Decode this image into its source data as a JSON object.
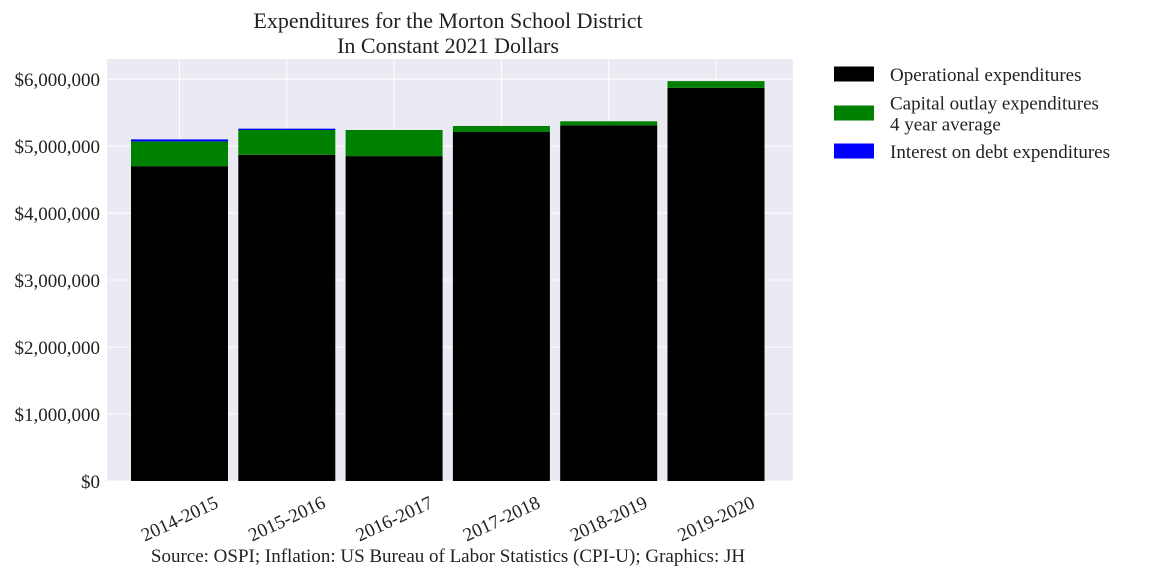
{
  "chart_data": {
    "type": "bar",
    "stacked": true,
    "title": [
      "Expenditures for the Morton School District",
      "In Constant 2021 Dollars"
    ],
    "xlabel": "",
    "ylabel": "",
    "categories": [
      "2014-2015",
      "2015-2016",
      "2016-2017",
      "2017-2018",
      "2018-2019",
      "2019-2020"
    ],
    "ylim": [
      0,
      6300000
    ],
    "yticks": [
      0,
      1000000,
      2000000,
      3000000,
      4000000,
      5000000,
      6000000
    ],
    "ytick_labels": [
      "$0",
      "$1,000,000",
      "$2,000,000",
      "$3,000,000",
      "$4,000,000",
      "$5,000,000",
      "$6,000,000"
    ],
    "grid": true,
    "legend_position": "outside-top-right",
    "series": [
      {
        "name": "Operational expenditures",
        "color": "#000000",
        "values": [
          4700000,
          4870000,
          4850000,
          5210000,
          5310000,
          5870000
        ]
      },
      {
        "name": "Capital outlay expenditures\n4 year average",
        "color": "#008000",
        "values": [
          370000,
          370000,
          390000,
          90000,
          60000,
          100000
        ]
      },
      {
        "name": "Interest on debt expenditures",
        "color": "#0000ff",
        "values": [
          30000,
          20000,
          0,
          0,
          0,
          0
        ]
      }
    ],
    "source": "Source: OSPI; Inflation: US Bureau of Labor Statistics (CPI-U); Graphics: JH"
  },
  "colors": {
    "plot_background": "#eaeaf2",
    "grid": "#ffffff"
  }
}
